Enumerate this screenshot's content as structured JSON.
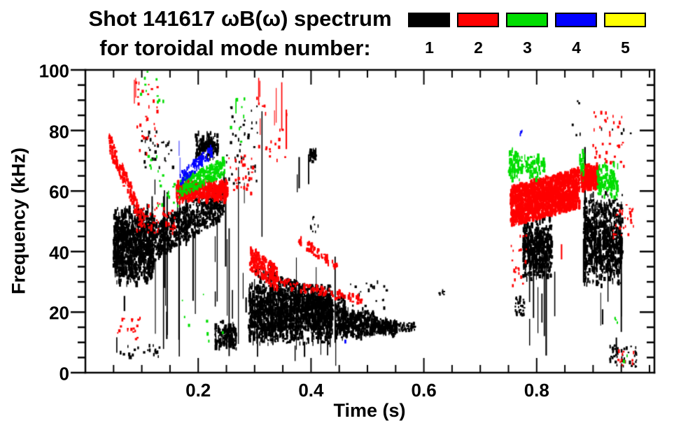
{
  "title": {
    "line1": "Shot 141617 ωB(ω) spectrum",
    "line2": "for toroidal mode number:"
  },
  "axes": {
    "x_label": "Time (s)",
    "y_label": "Frequency (kHz)"
  },
  "legend": {
    "items": [
      {
        "label": "1",
        "color": "#000000"
      },
      {
        "label": "2",
        "color": "#ff0000"
      },
      {
        "label": "3",
        "color": "#00dd00"
      },
      {
        "label": "4",
        "color": "#0000ff"
      },
      {
        "label": "5",
        "color": "#ffff00"
      }
    ]
  },
  "chart_data": {
    "type": "scatter",
    "title": "Shot 141617 ωB(ω) spectrum for toroidal mode number",
    "xlabel": "Time (s)",
    "ylabel": "Frequency (kHz)",
    "xlim": [
      0,
      1.01
    ],
    "ylim": [
      0,
      100
    ],
    "grid": false,
    "legend_position": "top-right-outside",
    "xticks": [
      {
        "v": 0.2,
        "label": "0.2"
      },
      {
        "v": 0.4,
        "label": "0.4"
      },
      {
        "v": 0.6,
        "label": "0.6"
      },
      {
        "v": 0.8,
        "label": "0.8"
      }
    ],
    "yticks": [
      {
        "v": 0,
        "label": "0"
      },
      {
        "v": 20,
        "label": "20"
      },
      {
        "v": 40,
        "label": "40"
      },
      {
        "v": 60,
        "label": "60"
      },
      {
        "v": 80,
        "label": "80"
      },
      {
        "v": 100,
        "label": "100"
      }
    ],
    "x_minor_step": 0.05,
    "y_minor_step": 5,
    "series": [
      {
        "name": "1",
        "color": "#000000",
        "clusters": [
          {
            "kind": "blob",
            "t": [
              0.05,
              0.122
            ],
            "f": [
              28,
              56
            ],
            "n": 950
          },
          {
            "kind": "chirp",
            "t": [
              0.122,
              0.245
            ],
            "f": [
              43,
              57
            ],
            "spread": 6,
            "n": 650
          },
          {
            "kind": "blob",
            "t": [
              0.195,
              0.235
            ],
            "f": [
              70,
              80
            ],
            "n": 130
          },
          {
            "kind": "dots",
            "t": [
              0.1,
              0.16
            ],
            "f": [
              66,
              80
            ],
            "n": 30
          },
          {
            "kind": "dots",
            "t": [
              0.24,
              0.305
            ],
            "f": [
              62,
              88
            ],
            "n": 45
          },
          {
            "kind": "vlines",
            "t": [
              0.055,
              0.175
            ],
            "f": [
              3,
              62
            ],
            "n": 16
          },
          {
            "kind": "vlines",
            "t": [
              0.175,
              0.3
            ],
            "f": [
              3,
              70
            ],
            "n": 14
          },
          {
            "kind": "vlines",
            "t": [
              0.268,
              0.315
            ],
            "f": [
              2,
              88
            ],
            "n": 4
          },
          {
            "kind": "blob",
            "t": [
              0.23,
              0.268
            ],
            "f": [
              7,
              17
            ],
            "n": 140
          },
          {
            "kind": "dots",
            "t": [
              0.06,
              0.135
            ],
            "f": [
              5,
              9
            ],
            "n": 22
          },
          {
            "kind": "blob",
            "t": [
              0.29,
              0.438
            ],
            "f": [
              9,
              30
            ],
            "n": 1350
          },
          {
            "kind": "blob",
            "t": [
              0.444,
              0.462
            ],
            "f": [
              10,
              26
            ],
            "n": 120
          },
          {
            "kind": "chirp",
            "t": [
              0.3,
              0.44
            ],
            "f": [
              31,
              22
            ],
            "spread": 4,
            "n": 280
          },
          {
            "kind": "vlines",
            "t": [
              0.29,
              0.46
            ],
            "f": [
              2,
              40
            ],
            "n": 16
          },
          {
            "kind": "blob",
            "t": [
              0.462,
              0.515
            ],
            "f": [
              11,
              21
            ],
            "n": 240
          },
          {
            "kind": "blob",
            "t": [
              0.515,
              0.552
            ],
            "f": [
              12,
              18
            ],
            "n": 130
          },
          {
            "kind": "dots",
            "t": [
              0.552,
              0.585
            ],
            "f": [
              13.5,
              16.5
            ],
            "n": 40
          },
          {
            "kind": "dots",
            "t": [
              0.46,
              0.535
            ],
            "f": [
              21,
              30
            ],
            "n": 20
          },
          {
            "kind": "dots",
            "t": [
              0.625,
              0.636
            ],
            "f": [
              25.5,
              27.5
            ],
            "n": 6
          },
          {
            "kind": "vlines",
            "t": [
              0.372,
              0.402
            ],
            "f": [
              58,
              76
            ],
            "n": 3
          },
          {
            "kind": "blob",
            "t": [
              0.397,
              0.41
            ],
            "f": [
              69,
              75
            ],
            "n": 30
          },
          {
            "kind": "dots",
            "t": [
              0.399,
              0.413
            ],
            "f": [
              46,
              52
            ],
            "n": 8
          },
          {
            "kind": "blob",
            "t": [
              0.776,
              0.827
            ],
            "f": [
              30,
              52
            ],
            "n": 430
          },
          {
            "kind": "dots",
            "t": [
              0.762,
              0.78
            ],
            "f": [
              19,
              25
            ],
            "n": 30
          },
          {
            "kind": "vlines",
            "t": [
              0.776,
              0.836
            ],
            "f": [
              3,
              40
            ],
            "n": 10
          },
          {
            "kind": "vlines",
            "t": [
              0.881,
              0.888
            ],
            "f": [
              2,
              88
            ],
            "n": 2
          },
          {
            "kind": "blob",
            "t": [
              0.884,
              0.952
            ],
            "f": [
              28,
              60
            ],
            "n": 700
          },
          {
            "kind": "vlines",
            "t": [
              0.886,
              0.952
            ],
            "f": [
              4,
              55
            ],
            "n": 12
          },
          {
            "kind": "dots",
            "t": [
              0.928,
              0.977
            ],
            "f": [
              2,
              9
            ],
            "n": 45
          },
          {
            "kind": "dots",
            "t": [
              0.862,
              0.972
            ],
            "f": [
              78,
              90
            ],
            "n": 10
          }
        ]
      },
      {
        "name": "2",
        "color": "#ff0000",
        "clusters": [
          {
            "kind": "vlines",
            "t": [
              0.0865,
              0.0905
            ],
            "f": [
              88,
              100
            ],
            "n": 2
          },
          {
            "kind": "dots",
            "t": [
              0.088,
              0.128
            ],
            "f": [
              72,
              96
            ],
            "n": 28
          },
          {
            "kind": "chirp",
            "t": [
              0.042,
              0.102
            ],
            "f": [
              76,
              50
            ],
            "spread": 3,
            "n": 140
          },
          {
            "kind": "dots",
            "t": [
              0.09,
              0.16
            ],
            "f": [
              46,
              56
            ],
            "n": 55
          },
          {
            "kind": "dots",
            "t": [
              0.055,
              0.1
            ],
            "f": [
              11,
              18
            ],
            "n": 18
          },
          {
            "kind": "blob",
            "t": [
              0.162,
              0.252
            ],
            "f": [
              56,
              64
            ],
            "n": 480
          },
          {
            "kind": "dots",
            "t": [
              0.252,
              0.302
            ],
            "f": [
              58,
              72
            ],
            "n": 35
          },
          {
            "kind": "vlines",
            "t": [
              0.303,
              0.318
            ],
            "f": [
              72,
              100
            ],
            "n": 3
          },
          {
            "kind": "vlines",
            "t": [
              0.328,
              0.352
            ],
            "f": [
              74,
              96
            ],
            "n": 3
          },
          {
            "kind": "dots",
            "t": [
              0.298,
              0.362
            ],
            "f": [
              70,
              92
            ],
            "n": 22
          },
          {
            "kind": "vlines",
            "t": [
              0.356,
              0.362
            ],
            "f": [
              72,
              88
            ],
            "n": 1
          },
          {
            "kind": "chirp",
            "t": [
              0.292,
              0.34
            ],
            "f": [
              38,
              31
            ],
            "spread": 4,
            "n": 200
          },
          {
            "kind": "chirp",
            "t": [
              0.34,
              0.49
            ],
            "f": [
              30,
              24
            ],
            "spread": 1.5,
            "n": 90
          },
          {
            "kind": "chirp",
            "t": [
              0.378,
              0.447
            ],
            "f": [
              44,
              35
            ],
            "spread": 1.5,
            "n": 60
          },
          {
            "kind": "chirp",
            "t": [
              0.754,
              0.876
            ],
            "f": [
              55,
              61
            ],
            "spread": 6.5,
            "n": 1700
          },
          {
            "kind": "blob",
            "t": [
              0.879,
              0.91
            ],
            "f": [
              60,
              69
            ],
            "n": 300
          },
          {
            "kind": "dots",
            "t": [
              0.9,
              0.955
            ],
            "f": [
              68,
              86
            ],
            "n": 40
          },
          {
            "kind": "dots",
            "t": [
              0.93,
              0.972
            ],
            "f": [
              44,
              56
            ],
            "n": 28
          },
          {
            "kind": "dots",
            "t": [
              0.752,
              0.782
            ],
            "f": [
              28,
              46
            ],
            "n": 22
          },
          {
            "kind": "vlines",
            "t": [
              0.842,
              0.848
            ],
            "f": [
              34,
              44
            ],
            "n": 1
          },
          {
            "kind": "dots",
            "t": [
              0.942,
              0.975
            ],
            "f": [
              2,
              8
            ],
            "n": 12
          }
        ]
      },
      {
        "name": "3",
        "color": "#00dd00",
        "clusters": [
          {
            "kind": "chirp",
            "t": [
              0.168,
              0.247
            ],
            "f": [
              61,
              68
            ],
            "spread": 3,
            "n": 240
          },
          {
            "kind": "dots",
            "t": [
              0.098,
              0.148
            ],
            "f": [
              88,
              100
            ],
            "n": 10
          },
          {
            "kind": "dots",
            "t": [
              0.128,
              0.168
            ],
            "f": [
              55,
              66
            ],
            "n": 14
          },
          {
            "kind": "dots",
            "t": [
              0.112,
              0.132
            ],
            "f": [
              60,
              72
            ],
            "n": 8
          },
          {
            "kind": "vlines",
            "t": [
              0.265,
              0.272
            ],
            "f": [
              77,
              90
            ],
            "n": 1
          },
          {
            "kind": "dots",
            "t": [
              0.258,
              0.282
            ],
            "f": [
              75,
              93
            ],
            "n": 7
          },
          {
            "kind": "dots",
            "t": [
              0.16,
              0.245
            ],
            "f": [
              3,
              30
            ],
            "n": 8
          },
          {
            "kind": "blob",
            "t": [
              0.751,
              0.77
            ],
            "f": [
              63,
              74
            ],
            "n": 80
          },
          {
            "kind": "blob",
            "t": [
              0.773,
              0.814
            ],
            "f": [
              63,
              73
            ],
            "n": 80
          },
          {
            "kind": "blob",
            "t": [
              0.876,
              0.884
            ],
            "f": [
              62,
              74
            ],
            "n": 25
          },
          {
            "kind": "blob",
            "t": [
              0.908,
              0.944
            ],
            "f": [
              57,
              70
            ],
            "n": 110
          },
          {
            "kind": "dots",
            "t": [
              0.936,
              0.944
            ],
            "f": [
              16,
              19
            ],
            "n": 3
          },
          {
            "kind": "dots",
            "t": [
              0.952,
              0.962
            ],
            "f": [
              3,
              6
            ],
            "n": 3
          }
        ]
      },
      {
        "name": "4",
        "color": "#0000ff",
        "clusters": [
          {
            "kind": "chirp",
            "t": [
              0.168,
              0.224
            ],
            "f": [
              64,
              73
            ],
            "spread": 2,
            "n": 100
          },
          {
            "kind": "vlines",
            "t": [
              0.163,
              0.17
            ],
            "f": [
              63,
              82
            ],
            "n": 2,
            "light": true
          },
          {
            "kind": "dots",
            "t": [
              0.766,
              0.774
            ],
            "f": [
              78,
              80
            ],
            "n": 3
          },
          {
            "kind": "dots",
            "t": [
              0.459,
              0.465
            ],
            "f": [
              9,
              11
            ],
            "n": 2
          }
        ]
      },
      {
        "name": "5",
        "color": "#ffff00",
        "clusters": []
      }
    ]
  }
}
